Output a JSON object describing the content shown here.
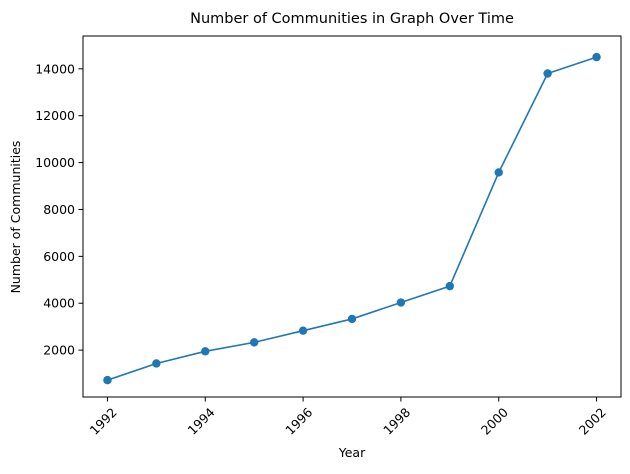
{
  "chart_data": {
    "type": "line",
    "title": "Number of Communities in Graph Over Time",
    "xlabel": "Year",
    "ylabel": "Number of Communities",
    "x": [
      1992,
      1993,
      1994,
      1995,
      1996,
      1997,
      1998,
      1999,
      2000,
      2001,
      2002
    ],
    "series": [
      {
        "values": [
          720,
          1430,
          1950,
          2330,
          2830,
          3330,
          4030,
          4730,
          9580,
          13800,
          14500
        ],
        "color": "#1f77b4",
        "marker": "circle"
      }
    ],
    "xlim": [
      1991.5,
      2002.5
    ],
    "ylim": [
      0,
      15400
    ],
    "x_ticks": [
      "1992",
      "1994",
      "1996",
      "1998",
      "2000",
      "2002"
    ],
    "y_ticks": [
      "2000",
      "4000",
      "6000",
      "8000",
      "10000",
      "12000",
      "14000"
    ],
    "x_tick_rotation_deg": 45,
    "grid": false,
    "legend": "none"
  }
}
